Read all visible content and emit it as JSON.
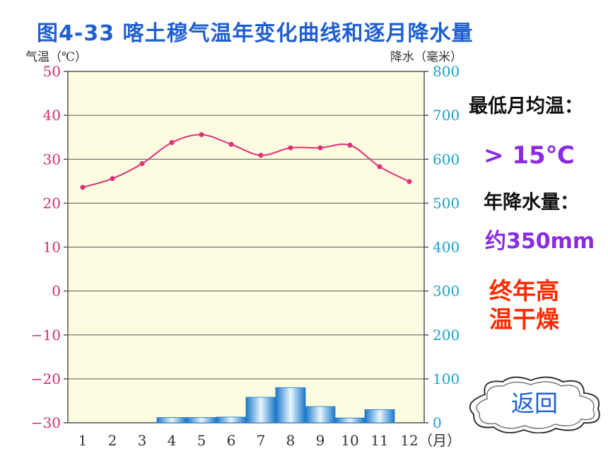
{
  "chart_data": {
    "type": "bar+line",
    "title": "图4-33 喀土穆气温年变化曲线和逐月降水量",
    "left_axis_label": "气温（℃）",
    "right_axis_label": "降水（毫米）",
    "x_unit_label": "（月）",
    "categories": [
      "1",
      "2",
      "3",
      "4",
      "5",
      "6",
      "7",
      "8",
      "9",
      "10",
      "11",
      "12"
    ],
    "left_ticks": [
      "50",
      "40",
      "30",
      "20",
      "10",
      "0",
      "−10",
      "−20",
      "−30"
    ],
    "right_ticks": [
      "800",
      "700",
      "600",
      "500",
      "400",
      "300",
      "200",
      "100",
      "0"
    ],
    "temperature": [
      23.6,
      25.6,
      29.0,
      33.8,
      35.6,
      33.4,
      30.9,
      32.6,
      32.6,
      33.2,
      28.3,
      24.9
    ],
    "precipitation": [
      0,
      0,
      0,
      12,
      12,
      13,
      58,
      80,
      37,
      11,
      30,
      0
    ],
    "temp_range": [
      -30,
      50
    ],
    "precip_range": [
      0,
      800
    ],
    "temp_color": "#e0307a",
    "bar_color": "#2aa6ea",
    "plot_bg": "#fdfbe0"
  },
  "notes": {
    "min_temp_label": "最低月均温：",
    "min_temp_value": "> 15℃",
    "annual_precip_label": "年降水量：",
    "annual_precip_value": "约350mm",
    "climate_line1": "终年高",
    "climate_line2": "温干燥"
  },
  "nav": {
    "return_label": "返回"
  }
}
